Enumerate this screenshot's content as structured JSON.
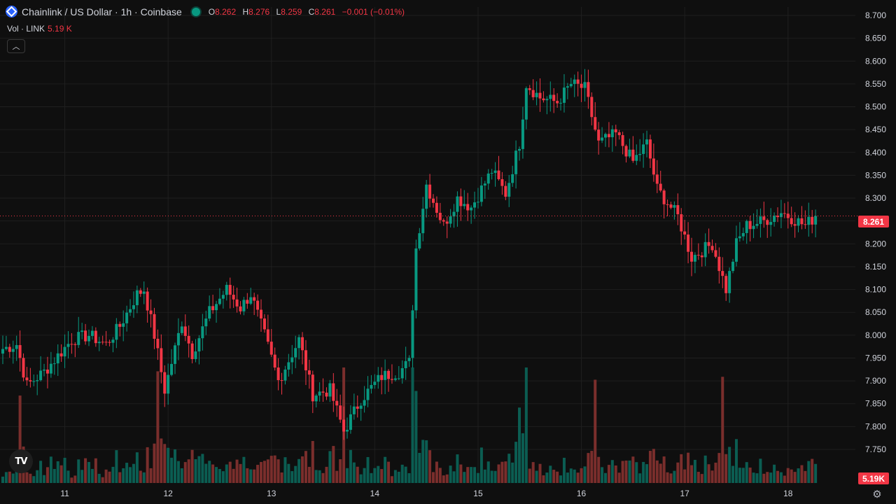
{
  "header": {
    "symbol_title": "Chainlink / US Dollar · 1h · Coinbase",
    "ohlc": [
      {
        "key": "O",
        "value": "8.262"
      },
      {
        "key": "H",
        "value": "8.276"
      },
      {
        "key": "L",
        "value": "8.259"
      },
      {
        "key": "C",
        "value": "8.261"
      }
    ],
    "change": "−0.001 (−0.01%)",
    "vol_label": "Vol · LINK",
    "vol_value": "5.19 K",
    "collapse_icon": "chevron-up-icon",
    "logo_text": "TV"
  },
  "colors": {
    "background": "#0f0f0f",
    "up": "#089981",
    "down": "#f23645",
    "up_volume": "#0b5d52",
    "down_volume": "#7a2e2c",
    "grid": "#1f1f1f",
    "axis_text": "#d1d4dc"
  },
  "price_labels": {
    "last_price": "8.261",
    "last_volume": "5.19K"
  },
  "chart_data": {
    "type": "candlestick",
    "title": "Chainlink / US Dollar · 1h · Coinbase",
    "ylim": [
      7.7,
      8.72
    ],
    "y_ticks": [
      "8.700",
      "8.650",
      "8.600",
      "8.550",
      "8.500",
      "8.450",
      "8.400",
      "8.350",
      "8.300",
      "8.250",
      "8.200",
      "8.150",
      "8.100",
      "8.050",
      "8.000",
      "7.950",
      "7.900",
      "7.850",
      "7.800",
      "7.750"
    ],
    "x_ticks": [
      "11",
      "12",
      "13",
      "14",
      "15",
      "16",
      "17",
      "18"
    ],
    "grid": true,
    "last_price": 8.261,
    "anchors": [
      {
        "i": 0,
        "p": 7.97
      },
      {
        "i": 4,
        "p": 7.98
      },
      {
        "i": 7,
        "p": 7.89
      },
      {
        "i": 12,
        "p": 7.92
      },
      {
        "i": 20,
        "p": 7.99
      },
      {
        "i": 25,
        "p": 8.0
      },
      {
        "i": 30,
        "p": 7.98
      },
      {
        "i": 34,
        "p": 8.02
      },
      {
        "i": 39,
        "p": 8.09
      },
      {
        "i": 41,
        "p": 8.1
      },
      {
        "i": 44,
        "p": 8.0
      },
      {
        "i": 47,
        "p": 7.88
      },
      {
        "i": 52,
        "p": 8.03
      },
      {
        "i": 55,
        "p": 7.96
      },
      {
        "i": 60,
        "p": 8.05
      },
      {
        "i": 65,
        "p": 8.1
      },
      {
        "i": 69,
        "p": 8.06
      },
      {
        "i": 72,
        "p": 8.09
      },
      {
        "i": 76,
        "p": 8.0
      },
      {
        "i": 80,
        "p": 7.9
      },
      {
        "i": 86,
        "p": 7.99
      },
      {
        "i": 90,
        "p": 7.87
      },
      {
        "i": 95,
        "p": 7.88
      },
      {
        "i": 99,
        "p": 7.79
      },
      {
        "i": 104,
        "p": 7.86
      },
      {
        "i": 110,
        "p": 7.91
      },
      {
        "i": 115,
        "p": 7.92
      },
      {
        "i": 118,
        "p": 7.94
      },
      {
        "i": 120,
        "p": 8.19
      },
      {
        "i": 123,
        "p": 8.33
      },
      {
        "i": 128,
        "p": 8.24
      },
      {
        "i": 132,
        "p": 8.3
      },
      {
        "i": 136,
        "p": 8.28
      },
      {
        "i": 142,
        "p": 8.36
      },
      {
        "i": 146,
        "p": 8.31
      },
      {
        "i": 150,
        "p": 8.42
      },
      {
        "i": 152,
        "p": 8.55
      },
      {
        "i": 156,
        "p": 8.52
      },
      {
        "i": 161,
        "p": 8.51
      },
      {
        "i": 165,
        "p": 8.55
      },
      {
        "i": 169,
        "p": 8.54
      },
      {
        "i": 173,
        "p": 8.42
      },
      {
        "i": 178,
        "p": 8.44
      },
      {
        "i": 183,
        "p": 8.38
      },
      {
        "i": 187,
        "p": 8.42
      },
      {
        "i": 190,
        "p": 8.32
      },
      {
        "i": 196,
        "p": 8.26
      },
      {
        "i": 200,
        "p": 8.17
      },
      {
        "i": 206,
        "p": 8.2
      },
      {
        "i": 210,
        "p": 8.1
      },
      {
        "i": 213,
        "p": 8.2
      },
      {
        "i": 216,
        "p": 8.24
      },
      {
        "i": 221,
        "p": 8.25
      },
      {
        "i": 226,
        "p": 8.27
      },
      {
        "i": 233,
        "p": 8.24
      },
      {
        "i": 236,
        "p": 8.261
      }
    ],
    "candle_count": 237,
    "x_domain": [
      0,
      236
    ],
    "x_tick_index": [
      18,
      48,
      78,
      108,
      138,
      168,
      198,
      228
    ]
  }
}
